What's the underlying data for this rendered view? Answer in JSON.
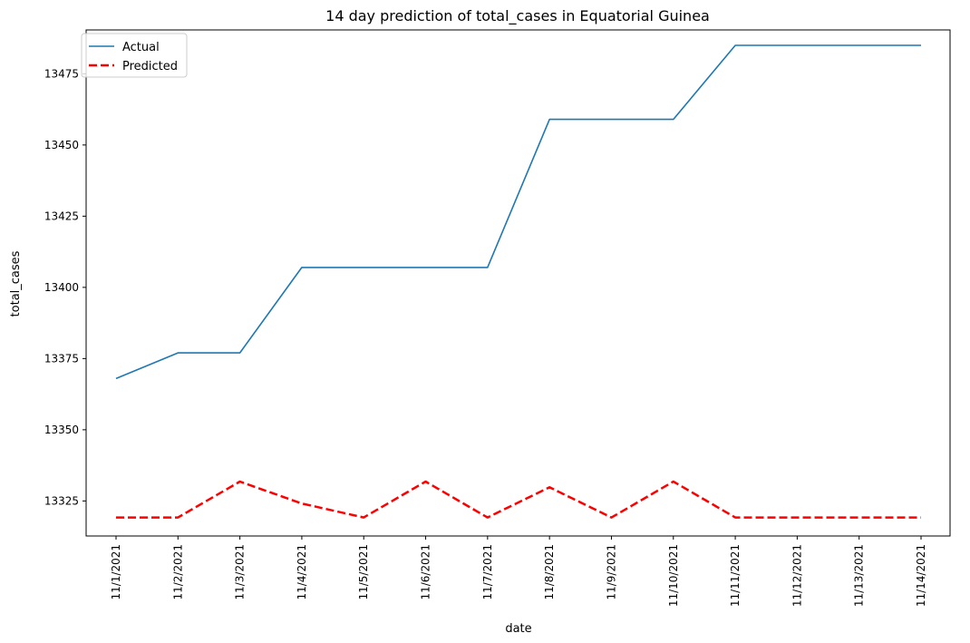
{
  "chart_data": {
    "type": "line",
    "title": "14 day prediction of total_cases in Equatorial Guinea",
    "xlabel": "date",
    "ylabel": "total_cases",
    "categories": [
      "11/1/2021",
      "11/2/2021",
      "11/3/2021",
      "11/4/2021",
      "11/5/2021",
      "11/6/2021",
      "11/7/2021",
      "11/8/2021",
      "11/9/2021",
      "11/10/2021",
      "11/11/2021",
      "11/12/2021",
      "11/13/2021",
      "11/14/2021"
    ],
    "yticks": [
      13325,
      13350,
      13375,
      13400,
      13425,
      13450,
      13475
    ],
    "ylim": [
      13312.7,
      13490.4
    ],
    "grid": false,
    "legend_position": "top-left",
    "series": [
      {
        "name": "Actual",
        "color": "#1f77b4",
        "style": "solid",
        "values": [
          13368,
          13377,
          13377,
          13407,
          13407,
          13407,
          13407,
          13459,
          13459,
          13459,
          13485,
          13485,
          13485,
          13485
        ]
      },
      {
        "name": "Predicted",
        "color": "#ff0000",
        "style": "dashed",
        "values": [
          13319.2,
          13319.2,
          13331.8,
          13324.1,
          13319.2,
          13331.8,
          13319.2,
          13329.8,
          13319.2,
          13331.8,
          13319.2,
          13319.2,
          13319.2,
          13319.2
        ]
      }
    ]
  }
}
